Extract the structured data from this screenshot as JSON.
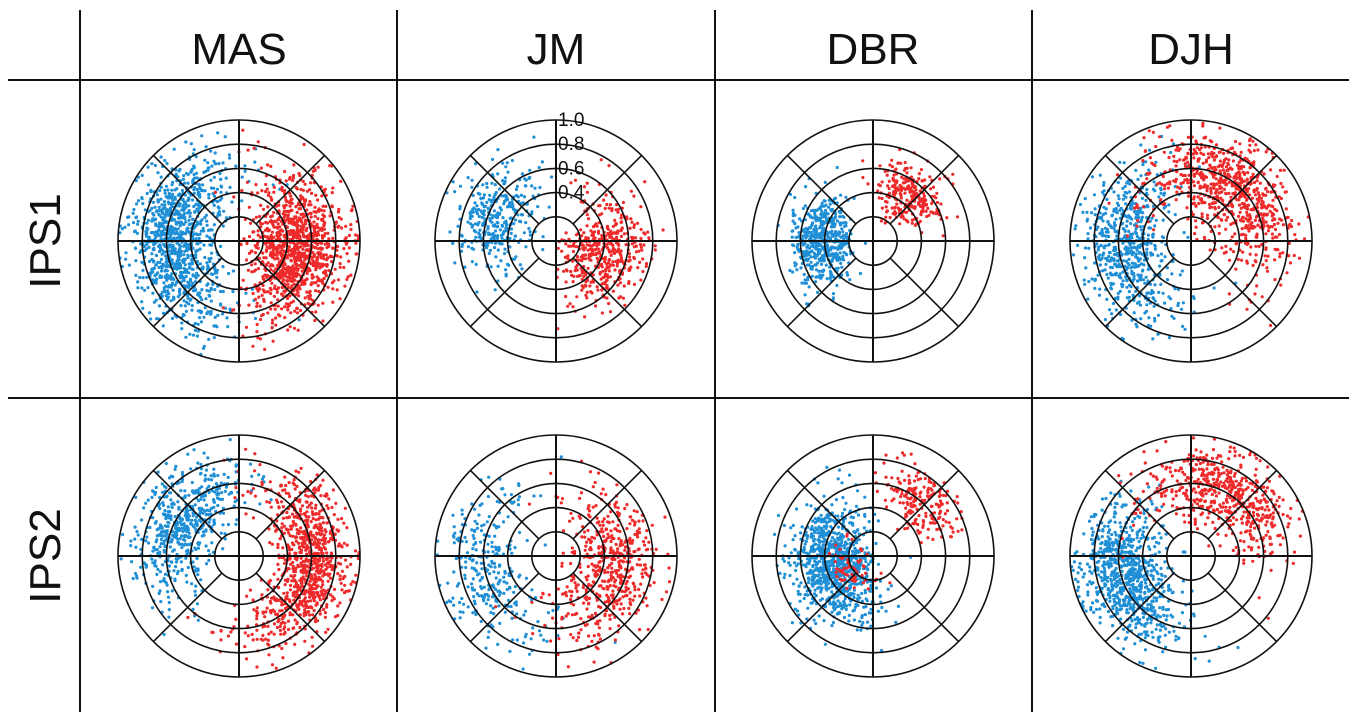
{
  "figure": {
    "columns": [
      "MAS",
      "JM",
      "DBR",
      "DJH"
    ],
    "rows": [
      "IPS1",
      "IPS2"
    ]
  },
  "colors": {
    "series_a": "#1f8fd6",
    "series_b": "#ee2a2a",
    "grid": "#111111"
  },
  "chart_data": [
    {
      "type": "scatter",
      "panel": "IPS1-MAS",
      "projection": "polar",
      "rlim": [
        0,
        1.0
      ],
      "rings": [
        0.2,
        0.4,
        0.6,
        0.8,
        1.0
      ],
      "spokes_deg": [
        0,
        45,
        90,
        135,
        180,
        225,
        270,
        315
      ],
      "series": [
        {
          "color": "#1f8fd6",
          "clusters": [
            {
              "theta_deg": 178,
              "theta_spread": 38,
              "r_mean": 0.6,
              "r_spread": 0.3,
              "count": 1050
            }
          ]
        },
        {
          "color": "#ee2a2a",
          "clusters": [
            {
              "theta_deg": 355,
              "theta_spread": 32,
              "r_mean": 0.55,
              "r_spread": 0.33,
              "count": 1100
            }
          ]
        }
      ]
    },
    {
      "type": "scatter",
      "panel": "IPS1-JM",
      "projection": "polar",
      "rlim": [
        0,
        1.0
      ],
      "rings": [
        0.2,
        0.4,
        0.6,
        0.8,
        1.0
      ],
      "spokes_deg": [
        0,
        45,
        90,
        135,
        180,
        225,
        270,
        315
      ],
      "tick_labels": [
        "0.4",
        "0.6",
        "0.8",
        "1.0"
      ],
      "tick_values": [
        0.4,
        0.6,
        0.8,
        1.0
      ],
      "series": [
        {
          "color": "#1f8fd6",
          "clusters": [
            {
              "theta_deg": 158,
              "theta_spread": 22,
              "r_mean": 0.55,
              "r_spread": 0.28,
              "count": 330
            }
          ]
        },
        {
          "color": "#ee2a2a",
          "clusters": [
            {
              "theta_deg": 348,
              "theta_spread": 30,
              "r_mean": 0.45,
              "r_spread": 0.3,
              "count": 450
            }
          ]
        }
      ]
    },
    {
      "type": "scatter",
      "panel": "IPS1-DBR",
      "projection": "polar",
      "rlim": [
        0,
        1.0
      ],
      "rings": [
        0.2,
        0.4,
        0.6,
        0.8,
        1.0
      ],
      "spokes_deg": [
        0,
        45,
        90,
        135,
        180,
        225,
        270,
        315
      ],
      "series": [
        {
          "color": "#1f8fd6",
          "clusters": [
            {
              "theta_deg": 180,
              "theta_spread": 22,
              "r_mean": 0.45,
              "r_spread": 0.22,
              "count": 520
            }
          ]
        },
        {
          "color": "#ee2a2a",
          "clusters": [
            {
              "theta_deg": 52,
              "theta_spread": 18,
              "r_mean": 0.5,
              "r_spread": 0.22,
              "count": 260
            }
          ]
        }
      ]
    },
    {
      "type": "scatter",
      "panel": "IPS1-DJH",
      "projection": "polar",
      "rlim": [
        0,
        1.0
      ],
      "rings": [
        0.2,
        0.4,
        0.6,
        0.8,
        1.0
      ],
      "spokes_deg": [
        0,
        45,
        90,
        135,
        180,
        225,
        270,
        315
      ],
      "series": [
        {
          "color": "#1f8fd6",
          "clusters": [
            {
              "theta_deg": 188,
              "theta_spread": 34,
              "r_mean": 0.6,
              "r_spread": 0.3,
              "count": 620
            }
          ]
        },
        {
          "color": "#ee2a2a",
          "clusters": [
            {
              "theta_deg": 50,
              "theta_spread": 38,
              "r_mean": 0.6,
              "r_spread": 0.32,
              "count": 760
            }
          ]
        }
      ]
    },
    {
      "type": "scatter",
      "panel": "IPS2-MAS",
      "projection": "polar",
      "rlim": [
        0,
        1.0
      ],
      "rings": [
        0.2,
        0.4,
        0.6,
        0.8,
        1.0
      ],
      "spokes_deg": [
        0,
        45,
        90,
        135,
        180,
        225,
        270,
        315
      ],
      "series": [
        {
          "color": "#1f8fd6",
          "clusters": [
            {
              "theta_deg": 150,
              "theta_spread": 32,
              "r_mean": 0.6,
              "r_spread": 0.28,
              "count": 560
            }
          ]
        },
        {
          "color": "#ee2a2a",
          "clusters": [
            {
              "theta_deg": 352,
              "theta_spread": 36,
              "r_mean": 0.65,
              "r_spread": 0.27,
              "count": 900
            }
          ]
        }
      ]
    },
    {
      "type": "scatter",
      "panel": "IPS2-JM",
      "projection": "polar",
      "rlim": [
        0,
        1.0
      ],
      "rings": [
        0.2,
        0.4,
        0.6,
        0.8,
        1.0
      ],
      "spokes_deg": [
        0,
        45,
        90,
        135,
        180,
        225,
        270,
        315
      ],
      "series": [
        {
          "color": "#1f8fd6",
          "clusters": [
            {
              "theta_deg": 192,
              "theta_spread": 34,
              "r_mean": 0.65,
              "r_spread": 0.28,
              "count": 300
            }
          ]
        },
        {
          "color": "#ee2a2a",
          "clusters": [
            {
              "theta_deg": 345,
              "theta_spread": 40,
              "r_mean": 0.55,
              "r_spread": 0.3,
              "count": 520
            }
          ]
        }
      ]
    },
    {
      "type": "scatter",
      "panel": "IPS2-DBR",
      "projection": "polar",
      "rlim": [
        0,
        1.0
      ],
      "rings": [
        0.2,
        0.4,
        0.6,
        0.8,
        1.0
      ],
      "spokes_deg": [
        0,
        45,
        90,
        135,
        180,
        225,
        270,
        315
      ],
      "series": [
        {
          "color": "#1f8fd6",
          "clusters": [
            {
              "theta_deg": 190,
              "theta_spread": 40,
              "r_mean": 0.4,
              "r_spread": 0.28,
              "count": 900
            }
          ]
        },
        {
          "color": "#ee2a2a",
          "clusters": [
            {
              "theta_deg": 48,
              "theta_spread": 16,
              "r_mean": 0.62,
              "r_spread": 0.2,
              "count": 200
            },
            {
              "theta_deg": 210,
              "theta_spread": 40,
              "r_mean": 0.25,
              "r_spread": 0.12,
              "count": 60
            }
          ]
        }
      ]
    },
    {
      "type": "scatter",
      "panel": "IPS2-DJH",
      "projection": "polar",
      "rlim": [
        0,
        1.0
      ],
      "rings": [
        0.2,
        0.4,
        0.6,
        0.8,
        1.0
      ],
      "spokes_deg": [
        0,
        45,
        90,
        135,
        180,
        225,
        270,
        315
      ],
      "series": [
        {
          "color": "#1f8fd6",
          "clusters": [
            {
              "theta_deg": 198,
              "theta_spread": 30,
              "r_mean": 0.62,
              "r_spread": 0.3,
              "count": 820
            }
          ]
        },
        {
          "color": "#ee2a2a",
          "clusters": [
            {
              "theta_deg": 60,
              "theta_spread": 32,
              "r_mean": 0.65,
              "r_spread": 0.28,
              "count": 560
            }
          ]
        }
      ]
    }
  ]
}
